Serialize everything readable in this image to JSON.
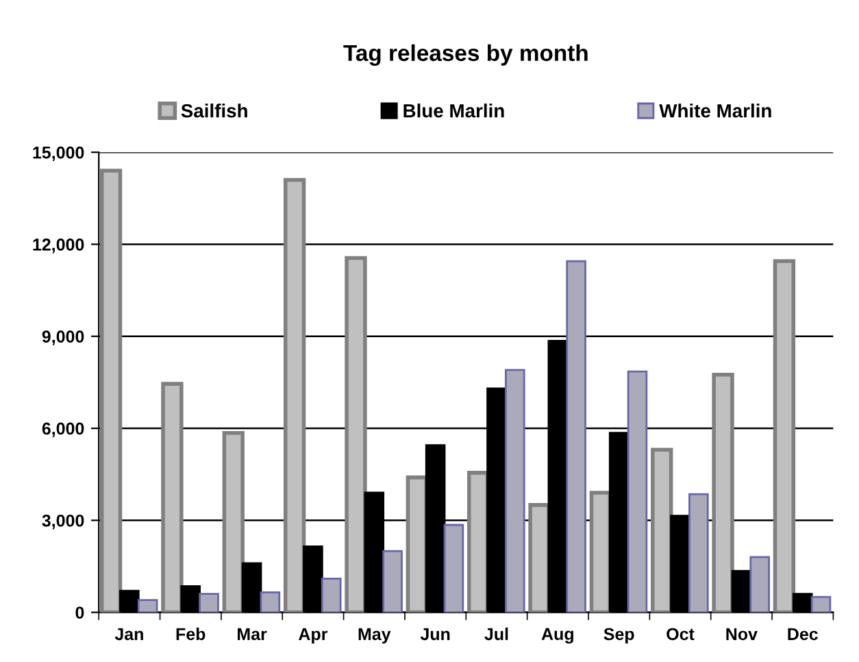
{
  "chart_data": {
    "type": "bar",
    "title": "Tag releases by month",
    "categories": [
      "Jan",
      "Feb",
      "Mar",
      "Apr",
      "May",
      "Jun",
      "Jul",
      "Aug",
      "Sep",
      "Oct",
      "Nov",
      "Dec"
    ],
    "series": [
      {
        "name": "Sailfish",
        "color": "#c0c0c0",
        "values": [
          14400,
          7450,
          5850,
          14100,
          11550,
          4400,
          4550,
          3500,
          3900,
          5300,
          7750,
          11450
        ]
      },
      {
        "name": "Blue Marlin",
        "color": "#000000",
        "values": [
          700,
          850,
          1600,
          2150,
          3900,
          5450,
          7300,
          8850,
          5850,
          3150,
          1350,
          600
        ]
      },
      {
        "name": "White Marlin",
        "color": "#aaaabb",
        "values": [
          400,
          600,
          650,
          1100,
          2000,
          2850,
          7900,
          11450,
          7850,
          3850,
          1800,
          500
        ]
      }
    ],
    "ylim": [
      0,
      15000
    ],
    "yticks": [
      {
        "value": 0,
        "label": "0"
      },
      {
        "value": 3000,
        "label": "3,000"
      },
      {
        "value": 6000,
        "label": "6,000"
      },
      {
        "value": 9000,
        "label": "9,000"
      },
      {
        "value": 12000,
        "label": "12,000"
      },
      {
        "value": 15000,
        "label": "15,000"
      }
    ],
    "grid": "y",
    "legend": "top"
  }
}
